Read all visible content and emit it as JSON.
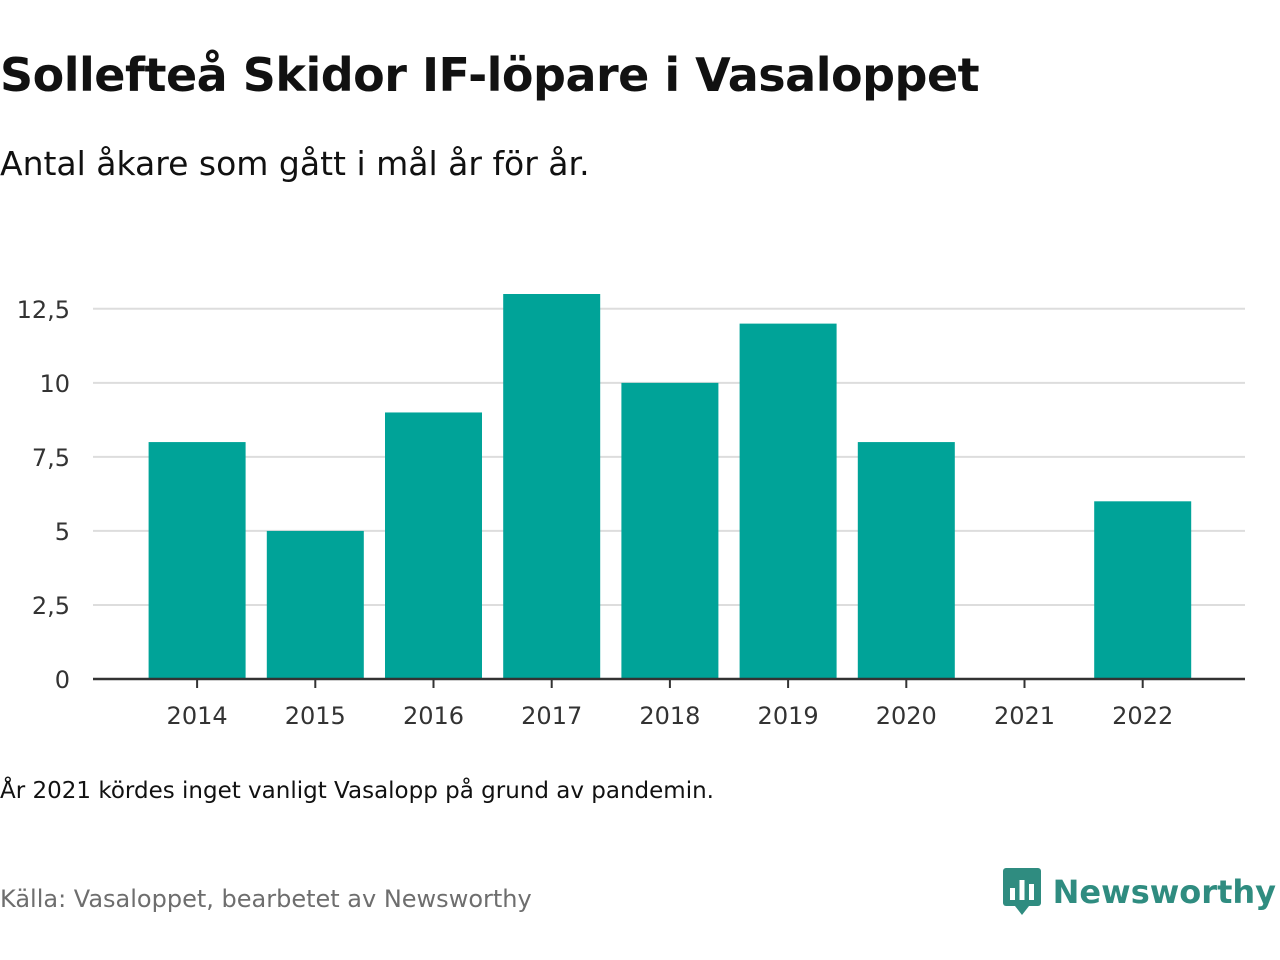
{
  "title": "Sollefteå Skidor IF-löpare i Vasaloppet",
  "subtitle": "Antal åkare som gått i mål år för år.",
  "note": "År 2021 kördes inget vanligt Vasalopp på grund av pandemin.",
  "source": "Källa: Vasaloppet, bearbetet av Newsworthy",
  "brand": {
    "name": "Newsworthy",
    "color": "#2f8c80",
    "icon": "newsworthy-logo-icon"
  },
  "chart_data": {
    "type": "bar",
    "title": "",
    "xlabel": "",
    "ylabel": "",
    "categories": [
      "2014",
      "2015",
      "2016",
      "2017",
      "2018",
      "2019",
      "2020",
      "2021",
      "2022"
    ],
    "values": [
      8,
      5,
      9,
      13,
      10,
      12,
      8,
      0,
      6
    ],
    "ylim": [
      0,
      13
    ],
    "yticks": [
      0,
      2.5,
      5,
      7.5,
      10,
      12.5
    ],
    "ytick_labels": [
      "0",
      "2,5",
      "5",
      "7,5",
      "10",
      "12,5"
    ],
    "grid": true,
    "bar_color": "#00a398",
    "grid_color": "#dddddd",
    "axis_color": "#333333"
  }
}
